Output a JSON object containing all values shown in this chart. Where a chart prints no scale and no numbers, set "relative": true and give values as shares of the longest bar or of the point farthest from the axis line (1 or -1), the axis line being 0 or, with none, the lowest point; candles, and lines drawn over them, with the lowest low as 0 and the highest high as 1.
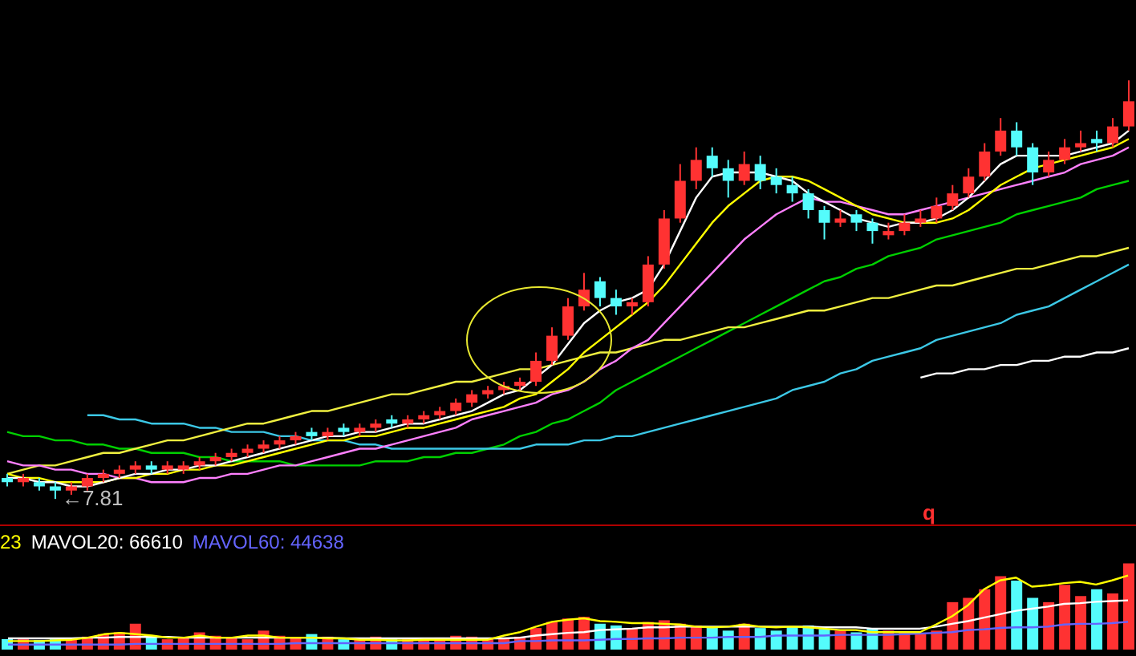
{
  "chart_data": [
    {
      "type": "candlestick",
      "relative": true,
      "categories": [
        null,
        null,
        null,
        null,
        null,
        null,
        null,
        null,
        null,
        null,
        null,
        null,
        null,
        null,
        null,
        null,
        null,
        null,
        null,
        null,
        null,
        null,
        null,
        null,
        null,
        null,
        null,
        null,
        null,
        null,
        null,
        null,
        null,
        null,
        null,
        null,
        null,
        null,
        null,
        null,
        null,
        null,
        null,
        null,
        null,
        null,
        null,
        null,
        null,
        null,
        null,
        null,
        null,
        null,
        null,
        null,
        null,
        null,
        null,
        null,
        null,
        null,
        null,
        null,
        null,
        null,
        null,
        null,
        null,
        null,
        null
      ],
      "ohlc": [
        [
          0.05,
          0.06,
          0.03,
          0.04
        ],
        [
          0.04,
          0.06,
          0.03,
          0.05
        ],
        [
          0.04,
          0.05,
          0.02,
          0.03
        ],
        [
          0.03,
          0.04,
          0,
          0.02
        ],
        [
          0.02,
          0.04,
          0.01,
          0.03
        ],
        [
          0.03,
          0.06,
          0.02,
          0.05
        ],
        [
          0.05,
          0.07,
          0.04,
          0.06
        ],
        [
          0.06,
          0.08,
          0.05,
          0.07
        ],
        [
          0.07,
          0.09,
          0.06,
          0.08
        ],
        [
          0.08,
          0.09,
          0.06,
          0.07
        ],
        [
          0.07,
          0.09,
          0.06,
          0.08
        ],
        [
          0.07,
          0.09,
          0.06,
          0.08
        ],
        [
          0.08,
          0.1,
          0.07,
          0.09
        ],
        [
          0.09,
          0.11,
          0.08,
          0.1
        ],
        [
          0.1,
          0.12,
          0.09,
          0.11
        ],
        [
          0.11,
          0.13,
          0.1,
          0.12
        ],
        [
          0.12,
          0.14,
          0.11,
          0.13
        ],
        [
          0.13,
          0.15,
          0.12,
          0.14
        ],
        [
          0.14,
          0.16,
          0.13,
          0.15
        ],
        [
          0.16,
          0.17,
          0.14,
          0.15
        ],
        [
          0.15,
          0.17,
          0.14,
          0.16
        ],
        [
          0.17,
          0.18,
          0.15,
          0.16
        ],
        [
          0.16,
          0.18,
          0.15,
          0.17
        ],
        [
          0.17,
          0.19,
          0.16,
          0.18
        ],
        [
          0.19,
          0.2,
          0.17,
          0.18
        ],
        [
          0.18,
          0.2,
          0.17,
          0.19
        ],
        [
          0.19,
          0.21,
          0.18,
          0.2
        ],
        [
          0.2,
          0.22,
          0.19,
          0.21
        ],
        [
          0.21,
          0.24,
          0.2,
          0.23
        ],
        [
          0.23,
          0.26,
          0.22,
          0.25
        ],
        [
          0.25,
          0.27,
          0.24,
          0.26
        ],
        [
          0.26,
          0.28,
          0.25,
          0.27
        ],
        [
          0.27,
          0.29,
          0.26,
          0.28
        ],
        [
          0.28,
          0.35,
          0.27,
          0.33
        ],
        [
          0.33,
          0.41,
          0.32,
          0.39
        ],
        [
          0.39,
          0.48,
          0.38,
          0.46
        ],
        [
          0.46,
          0.54,
          0.45,
          0.5
        ],
        [
          0.52,
          0.53,
          0.46,
          0.48
        ],
        [
          0.48,
          0.5,
          0.44,
          0.46
        ],
        [
          0.46,
          0.48,
          0.44,
          0.47
        ],
        [
          0.47,
          0.58,
          0.46,
          0.56
        ],
        [
          0.56,
          0.69,
          0.55,
          0.67
        ],
        [
          0.67,
          0.8,
          0.66,
          0.76
        ],
        [
          0.76,
          0.84,
          0.74,
          0.81
        ],
        [
          0.82,
          0.84,
          0.77,
          0.79
        ],
        [
          0.79,
          0.81,
          0.72,
          0.76
        ],
        [
          0.76,
          0.83,
          0.75,
          0.8
        ],
        [
          0.8,
          0.82,
          0.74,
          0.76
        ],
        [
          0.77,
          0.79,
          0.73,
          0.75
        ],
        [
          0.75,
          0.77,
          0.71,
          0.73
        ],
        [
          0.73,
          0.74,
          0.67,
          0.69
        ],
        [
          0.69,
          0.7,
          0.62,
          0.66
        ],
        [
          0.66,
          0.69,
          0.65,
          0.67
        ],
        [
          0.68,
          0.69,
          0.64,
          0.66
        ],
        [
          0.66,
          0.67,
          0.61,
          0.64
        ],
        [
          0.63,
          0.66,
          0.62,
          0.64
        ],
        [
          0.64,
          0.68,
          0.63,
          0.66
        ],
        [
          0.66,
          0.69,
          0.65,
          0.67
        ],
        [
          0.67,
          0.72,
          0.66,
          0.7
        ],
        [
          0.7,
          0.75,
          0.69,
          0.73
        ],
        [
          0.73,
          0.79,
          0.72,
          0.77
        ],
        [
          0.77,
          0.85,
          0.76,
          0.83
        ],
        [
          0.83,
          0.91,
          0.82,
          0.88
        ],
        [
          0.88,
          0.9,
          0.82,
          0.84
        ],
        [
          0.84,
          0.85,
          0.75,
          0.78
        ],
        [
          0.78,
          0.83,
          0.77,
          0.81
        ],
        [
          0.81,
          0.86,
          0.8,
          0.84
        ],
        [
          0.84,
          0.88,
          0.83,
          0.85
        ],
        [
          0.86,
          0.88,
          0.83,
          0.85
        ],
        [
          0.85,
          0.91,
          0.84,
          0.89
        ],
        [
          0.89,
          1,
          0.88,
          0.95
        ]
      ],
      "colors": [
        "#54fcfc",
        "#ff3232",
        "#54fcfc",
        "#54fcfc",
        "#ff3232",
        "#ff3232",
        "#ff3232",
        "#ff3232",
        "#ff3232",
        "#54fcfc",
        "#ff3232",
        "#ff3232",
        "#ff3232",
        "#ff3232",
        "#ff3232",
        "#ff3232",
        "#ff3232",
        "#ff3232",
        "#ff3232",
        "#54fcfc",
        "#ff3232",
        "#54fcfc",
        "#ff3232",
        "#ff3232",
        "#54fcfc",
        "#ff3232",
        "#ff3232",
        "#ff3232",
        "#ff3232",
        "#ff3232",
        "#ff3232",
        "#ff3232",
        "#ff3232",
        "#ff3232",
        "#ff3232",
        "#ff3232",
        "#ff3232",
        "#54fcfc",
        "#54fcfc",
        "#ff3232",
        "#ff3232",
        "#ff3232",
        "#ff3232",
        "#ff3232",
        "#54fcfc",
        "#54fcfc",
        "#ff3232",
        "#54fcfc",
        "#54fcfc",
        "#54fcfc",
        "#54fcfc",
        "#54fcfc",
        "#ff3232",
        "#54fcfc",
        "#54fcfc",
        "#ff3232",
        "#ff3232",
        "#ff3232",
        "#ff3232",
        "#ff3232",
        "#ff3232",
        "#ff3232",
        "#ff3232",
        "#54fcfc",
        "#54fcfc",
        "#ff3232",
        "#ff3232",
        "#ff3232",
        "#54fcfc",
        "#ff3232",
        "#ff3232"
      ],
      "series": [
        {
          "type": "line",
          "color": "#00d000",
          "values": [
            0.16,
            0.15,
            0.15,
            0.14,
            0.14,
            0.13,
            0.13,
            0.12,
            0.12,
            0.11,
            0.11,
            0.11,
            0.1,
            0.1,
            0.09,
            0.09,
            0.09,
            0.09,
            0.08,
            0.08,
            0.08,
            0.08,
            0.08,
            0.09,
            0.09,
            0.09,
            0.1,
            0.1,
            0.11,
            0.11,
            0.12,
            0.13,
            0.15,
            0.16,
            0.18,
            0.19,
            0.21,
            0.23,
            0.26,
            0.28,
            0.3,
            0.32,
            0.34,
            0.36,
            0.38,
            0.4,
            0.42,
            0.44,
            0.46,
            0.48,
            0.5,
            0.52,
            0.53,
            0.55,
            0.56,
            0.58,
            0.59,
            0.6,
            0.62,
            0.63,
            0.64,
            0.65,
            0.66,
            0.68,
            0.69,
            0.7,
            0.71,
            0.72,
            0.74,
            0.75,
            0.76
          ]
        },
        {
          "type": "line",
          "color": "#3cc8e6",
          "values": [
            null,
            null,
            null,
            null,
            null,
            0.2,
            0.2,
            0.19,
            0.19,
            0.18,
            0.18,
            0.18,
            0.17,
            0.17,
            0.16,
            0.16,
            0.16,
            0.15,
            0.15,
            0.14,
            0.14,
            0.14,
            0.13,
            0.13,
            0.12,
            0.12,
            0.12,
            0.12,
            0.12,
            0.12,
            0.12,
            0.12,
            0.12,
            0.13,
            0.13,
            0.13,
            0.14,
            0.14,
            0.15,
            0.15,
            0.16,
            0.17,
            0.18,
            0.19,
            0.2,
            0.21,
            0.22,
            0.23,
            0.24,
            0.26,
            0.27,
            0.28,
            0.3,
            0.31,
            0.33,
            0.34,
            0.35,
            0.36,
            0.38,
            0.39,
            0.4,
            0.41,
            0.42,
            0.44,
            0.45,
            0.46,
            0.48,
            0.5,
            0.52,
            0.54,
            0.56
          ]
        },
        {
          "type": "line",
          "color": "#f0f040",
          "values": [
            0.06,
            0.07,
            0.08,
            0.08,
            0.09,
            0.1,
            0.11,
            0.11,
            0.12,
            0.13,
            0.14,
            0.14,
            0.15,
            0.16,
            0.17,
            0.18,
            0.18,
            0.19,
            0.2,
            0.21,
            0.21,
            0.22,
            0.23,
            0.24,
            0.25,
            0.25,
            0.26,
            0.27,
            0.28,
            0.28,
            0.29,
            0.3,
            0.31,
            0.31,
            0.32,
            0.33,
            0.34,
            0.35,
            0.35,
            0.36,
            0.37,
            0.38,
            0.38,
            0.39,
            0.4,
            0.41,
            0.41,
            0.42,
            0.43,
            0.44,
            0.45,
            0.45,
            0.46,
            0.47,
            0.48,
            0.48,
            0.49,
            0.5,
            0.51,
            0.51,
            0.52,
            0.53,
            0.54,
            0.55,
            0.55,
            0.56,
            0.57,
            0.58,
            0.58,
            0.59,
            0.6
          ]
        },
        {
          "type": "line",
          "color": "#ffffff",
          "values": [
            null,
            null,
            null,
            null,
            null,
            null,
            null,
            null,
            null,
            null,
            null,
            null,
            null,
            null,
            null,
            null,
            null,
            null,
            null,
            null,
            null,
            null,
            null,
            null,
            null,
            null,
            null,
            null,
            null,
            null,
            null,
            null,
            null,
            null,
            null,
            null,
            null,
            null,
            null,
            null,
            null,
            null,
            null,
            null,
            null,
            null,
            null,
            null,
            null,
            null,
            null,
            null,
            null,
            null,
            null,
            null,
            null,
            0.29,
            0.3,
            0.3,
            0.31,
            0.31,
            0.32,
            0.32,
            0.33,
            0.33,
            0.34,
            0.34,
            0.35,
            0.35,
            0.36
          ]
        },
        {
          "type": "line",
          "color": "#ff80ff",
          "values": [
            0.09,
            0.08,
            0.08,
            0.07,
            0.07,
            0.06,
            0.06,
            0.05,
            0.05,
            0.04,
            0.04,
            0.04,
            0.05,
            0.05,
            0.06,
            0.06,
            0.07,
            0.08,
            0.08,
            0.09,
            0.1,
            0.11,
            0.12,
            0.12,
            0.13,
            0.14,
            0.15,
            0.16,
            0.17,
            0.19,
            0.2,
            0.21,
            0.22,
            0.23,
            0.25,
            0.26,
            0.28,
            0.31,
            0.33,
            0.36,
            0.38,
            0.42,
            0.46,
            0.5,
            0.54,
            0.58,
            0.62,
            0.65,
            0.68,
            0.7,
            0.72,
            0.71,
            0.71,
            0.7,
            0.69,
            0.68,
            0.68,
            0.69,
            0.7,
            0.71,
            0.72,
            0.73,
            0.74,
            0.75,
            0.76,
            0.77,
            0.78,
            0.8,
            0.81,
            0.82,
            0.84
          ]
        },
        {
          "type": "line",
          "color": "#ffff00",
          "values": [
            0.06,
            0.05,
            0.05,
            0.04,
            0.04,
            0.04,
            0.04,
            0.05,
            0.05,
            0.06,
            0.06,
            0.07,
            0.07,
            0.08,
            0.08,
            0.09,
            0.1,
            0.11,
            0.12,
            0.13,
            0.14,
            0.14,
            0.15,
            0.15,
            0.16,
            0.17,
            0.17,
            0.18,
            0.19,
            0.2,
            0.21,
            0.22,
            0.24,
            0.25,
            0.28,
            0.31,
            0.35,
            0.38,
            0.41,
            0.44,
            0.47,
            0.51,
            0.56,
            0.61,
            0.66,
            0.7,
            0.73,
            0.76,
            0.77,
            0.77,
            0.76,
            0.74,
            0.72,
            0.7,
            0.68,
            0.67,
            0.66,
            0.66,
            0.66,
            0.67,
            0.69,
            0.72,
            0.75,
            0.77,
            0.79,
            0.8,
            0.81,
            0.82,
            0.83,
            0.84,
            0.86
          ]
        },
        {
          "type": "line",
          "color": "#ffffff",
          "values": [
            0.05,
            0.05,
            0.04,
            0.04,
            0.03,
            0.03,
            0.04,
            0.05,
            0.06,
            0.06,
            0.07,
            0.07,
            0.08,
            0.08,
            0.09,
            0.1,
            0.11,
            0.12,
            0.13,
            0.14,
            0.15,
            0.15,
            0.16,
            0.16,
            0.17,
            0.18,
            0.18,
            0.19,
            0.2,
            0.21,
            0.23,
            0.25,
            0.26,
            0.29,
            0.32,
            0.37,
            0.42,
            0.45,
            0.47,
            0.48,
            0.5,
            0.56,
            0.64,
            0.72,
            0.77,
            0.78,
            0.78,
            0.78,
            0.77,
            0.76,
            0.73,
            0.71,
            0.69,
            0.67,
            0.66,
            0.65,
            0.66,
            0.66,
            0.67,
            0.69,
            0.72,
            0.76,
            0.8,
            0.82,
            0.82,
            0.82,
            0.82,
            0.83,
            0.84,
            0.85,
            0.88
          ]
        }
      ],
      "annotations": [
        "←7.81"
      ]
    },
    {
      "type": "bar",
      "relative": true,
      "categories": [
        null,
        null,
        null,
        null,
        null,
        null,
        null,
        null,
        null,
        null,
        null,
        null,
        null,
        null,
        null,
        null,
        null,
        null,
        null,
        null,
        null,
        null,
        null,
        null,
        null,
        null,
        null,
        null,
        null,
        null,
        null,
        null,
        null,
        null,
        null,
        null,
        null,
        null,
        null,
        null,
        null,
        null,
        null,
        null,
        null,
        null,
        null,
        null,
        null,
        null,
        null,
        null,
        null,
        null,
        null,
        null,
        null,
        null,
        null,
        null,
        null,
        null,
        null,
        null,
        null,
        null,
        null,
        null,
        null,
        null,
        null
      ],
      "values": [
        0.12,
        0.12,
        0.11,
        0.12,
        0.13,
        0.15,
        0.18,
        0.2,
        0.3,
        0.15,
        0.12,
        0.14,
        0.2,
        0.16,
        0.14,
        0.12,
        0.22,
        0.16,
        0.14,
        0.18,
        0.15,
        0.12,
        0.14,
        0.15,
        0.13,
        0.12,
        0.12,
        0.14,
        0.16,
        0.15,
        0.13,
        0.14,
        0.15,
        0.25,
        0.32,
        0.36,
        0.38,
        0.3,
        0.28,
        0.24,
        0.32,
        0.34,
        0.3,
        0.28,
        0.26,
        0.22,
        0.3,
        0.25,
        0.22,
        0.26,
        0.28,
        0.24,
        0.22,
        0.2,
        0.25,
        0.22,
        0.2,
        0.18,
        0.22,
        0.55,
        0.6,
        0.7,
        0.85,
        0.8,
        0.6,
        0.55,
        0.75,
        0.62,
        0.7,
        0.65,
        1
      ],
      "colors": [
        "#54fcfc",
        "#ff3232",
        "#54fcfc",
        "#54fcfc",
        "#ff3232",
        "#ff3232",
        "#ff3232",
        "#ff3232",
        "#ff3232",
        "#54fcfc",
        "#ff3232",
        "#ff3232",
        "#ff3232",
        "#ff3232",
        "#ff3232",
        "#ff3232",
        "#ff3232",
        "#ff3232",
        "#ff3232",
        "#54fcfc",
        "#ff3232",
        "#54fcfc",
        "#ff3232",
        "#ff3232",
        "#54fcfc",
        "#ff3232",
        "#ff3232",
        "#ff3232",
        "#ff3232",
        "#ff3232",
        "#ff3232",
        "#ff3232",
        "#ff3232",
        "#ff3232",
        "#ff3232",
        "#ff3232",
        "#ff3232",
        "#54fcfc",
        "#54fcfc",
        "#ff3232",
        "#ff3232",
        "#ff3232",
        "#ff3232",
        "#ff3232",
        "#54fcfc",
        "#54fcfc",
        "#ff3232",
        "#54fcfc",
        "#54fcfc",
        "#54fcfc",
        "#54fcfc",
        "#54fcfc",
        "#ff3232",
        "#54fcfc",
        "#54fcfc",
        "#ff3232",
        "#ff3232",
        "#ff3232",
        "#ff3232",
        "#ff3232",
        "#ff3232",
        "#ff3232",
        "#ff3232",
        "#54fcfc",
        "#54fcfc",
        "#ff3232",
        "#ff3232",
        "#ff3232",
        "#54fcfc",
        "#ff3232",
        "#ff3232"
      ],
      "annotations": [
        "q"
      ]
    },
    {
      "type": "line",
      "relative": true,
      "categories": [
        null,
        null,
        null,
        null,
        null,
        null,
        null,
        null,
        null,
        null,
        null,
        null,
        null,
        null,
        null,
        null,
        null,
        null,
        null,
        null,
        null,
        null,
        null,
        null,
        null,
        null,
        null,
        null,
        null,
        null,
        null,
        null,
        null,
        null,
        null,
        null,
        null,
        null,
        null,
        null,
        null,
        null,
        null,
        null,
        null,
        null,
        null,
        null,
        null,
        null,
        null,
        null,
        null,
        null,
        null,
        null,
        null,
        null,
        null,
        null,
        null,
        null,
        null,
        null,
        null,
        null,
        null,
        null,
        null,
        null,
        null
      ],
      "series": [
        {
          "name": "23",
          "color": "#ffff00",
          "values": [
            0.05,
            0.05,
            0.05,
            0.06,
            0.07,
            0.1,
            0.15,
            0.17,
            0.15,
            0.13,
            0.1,
            0.1,
            0.13,
            0.1,
            0.1,
            0.13,
            0.13,
            0.1,
            0.1,
            0.1,
            0.09,
            0.09,
            0.07,
            0.07,
            0.06,
            0.06,
            0.07,
            0.07,
            0.07,
            0.07,
            0.07,
            0.13,
            0.18,
            0.26,
            0.33,
            0.36,
            0.38,
            0.34,
            0.33,
            0.31,
            0.31,
            0.3,
            0.29,
            0.26,
            0.25,
            0.26,
            0.29,
            0.26,
            0.25,
            0.26,
            0.25,
            0.23,
            0.21,
            0.21,
            0.18,
            0.18,
            0.18,
            0.18,
            0.29,
            0.41,
            0.57,
            0.8,
            0.93,
            0.97,
            0.84,
            0.86,
            0.89,
            0.91,
            0.87,
            0.93,
            1
          ]
        },
        {
          "name": "MAVOL20: 66610",
          "color": "#ffffff",
          "values": [
            0.09,
            0.09,
            0.09,
            0.09,
            0.09,
            0.1,
            0.1,
            0.11,
            0.11,
            0.11,
            0.11,
            0.1,
            0.1,
            0.1,
            0.1,
            0.1,
            0.1,
            0.1,
            0.1,
            0.1,
            0.1,
            0.09,
            0.09,
            0.09,
            0.09,
            0.09,
            0.09,
            0.09,
            0.09,
            0.09,
            0.09,
            0.09,
            0.1,
            0.13,
            0.15,
            0.17,
            0.18,
            0.21,
            0.22,
            0.23,
            0.25,
            0.25,
            0.26,
            0.26,
            0.26,
            0.26,
            0.26,
            0.26,
            0.26,
            0.26,
            0.26,
            0.25,
            0.25,
            0.25,
            0.23,
            0.23,
            0.23,
            0.23,
            0.26,
            0.3,
            0.34,
            0.39,
            0.44,
            0.49,
            0.52,
            0.55,
            0.59,
            0.6,
            0.62,
            0.63,
            0.64
          ]
        },
        {
          "name": "MAVOL60: 44638",
          "color": "#6464ff",
          "values": [
            0,
            0,
            0,
            0,
            0,
            0,
            0,
            0,
            0.01,
            0.01,
            0.01,
            0.01,
            0.01,
            0.01,
            0.01,
            0.01,
            0.01,
            0.01,
            0.02,
            0.02,
            0.02,
            0.02,
            0.02,
            0.02,
            0.02,
            0.02,
            0.02,
            0.02,
            0.02,
            0.02,
            0.02,
            0.02,
            0.05,
            0.05,
            0.06,
            0.06,
            0.06,
            0.07,
            0.08,
            0.08,
            0.09,
            0.09,
            0.1,
            0.1,
            0.1,
            0.11,
            0.11,
            0.11,
            0.13,
            0.13,
            0.13,
            0.13,
            0.14,
            0.14,
            0.14,
            0.14,
            0.15,
            0.16,
            0.17,
            0.18,
            0.21,
            0.22,
            0.24,
            0.25,
            0.25,
            0.26,
            0.29,
            0.3,
            0.3,
            0.31,
            0.33
          ]
        }
      ]
    }
  ]
}
